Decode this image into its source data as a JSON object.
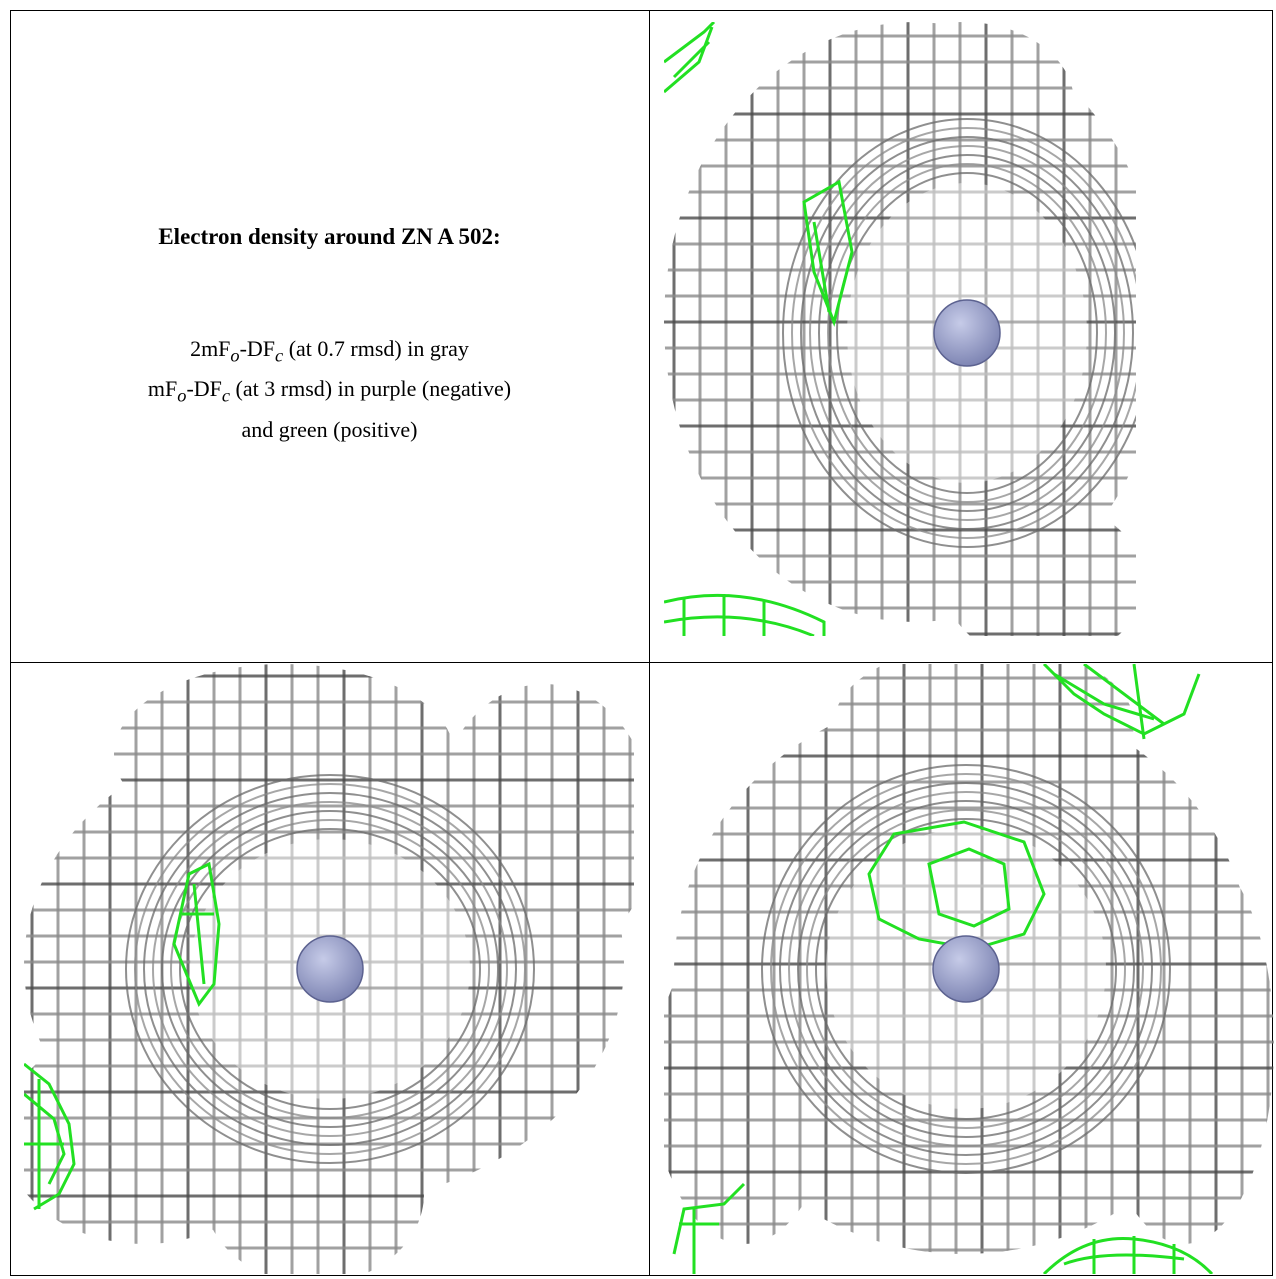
{
  "caption": {
    "title": "Electron density around ZN A 502:",
    "line1_main": "2mF",
    "line1_sub1": "o",
    "line1_mid": "-DF",
    "line1_sub2": "c",
    "line1_rest": " (at 0.7 rmsd) in gray",
    "line2_main": "mF",
    "line2_sub1": "o",
    "line2_mid": "-DF",
    "line2_sub2": "c",
    "line2_rest": " (at 3 rmsd) in purple (negative)",
    "line3": "and green (positive)"
  },
  "colors": {
    "mesh_gray": "#8a8a8a",
    "mesh_dark": "#4a4a4a",
    "mesh_green": "#22e022",
    "zinc_atom": "#7f86b4"
  },
  "panels": [
    {
      "name": "density-view-1",
      "atom": "ZN"
    },
    {
      "name": "density-view-2",
      "atom": "ZN"
    },
    {
      "name": "density-view-3",
      "atom": "ZN"
    }
  ]
}
